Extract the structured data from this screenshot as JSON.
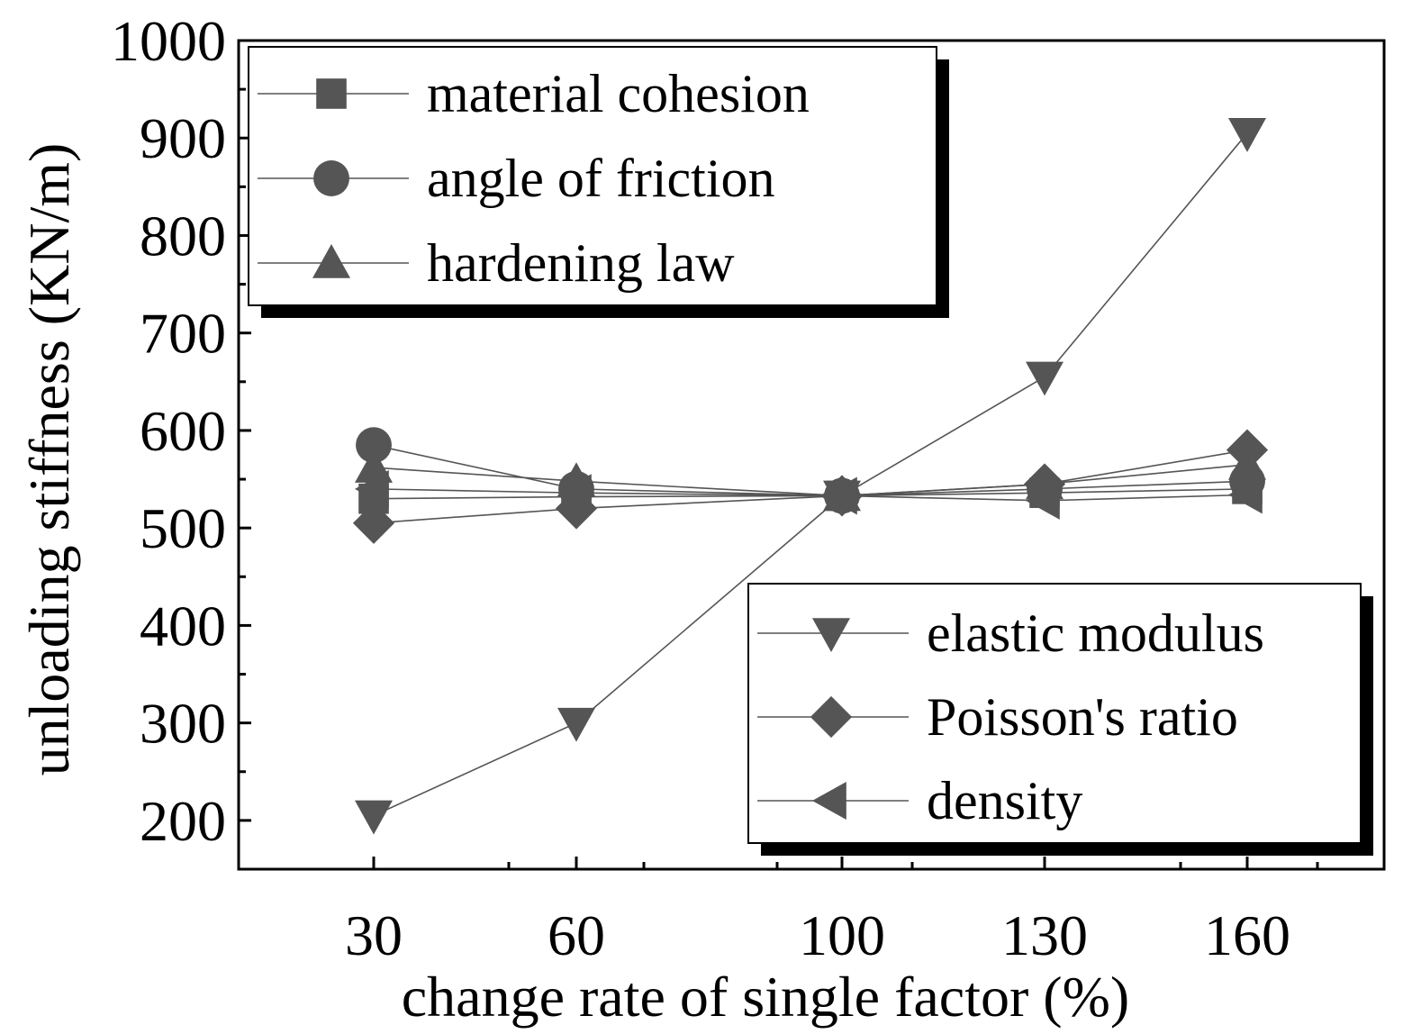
{
  "chart_data": {
    "type": "line",
    "title": "",
    "xlabel": "change rate of single factor (%)",
    "ylabel": "unloading stiffness (KN/m)",
    "categories": [
      "30",
      "60",
      "100",
      "130",
      "160"
    ],
    "x": [
      30,
      60,
      100,
      130,
      160
    ],
    "xlim": [
      10,
      180
    ],
    "ylim": [
      150,
      1000
    ],
    "yticks": [
      200,
      300,
      400,
      500,
      600,
      700,
      800,
      900,
      1000
    ],
    "grid": false,
    "series": [
      {
        "name": "material cohesion",
        "marker": "square",
        "values": [
          530,
          532,
          533,
          536,
          540
        ]
      },
      {
        "name": "angle of friction",
        "marker": "circle",
        "values": [
          585,
          540,
          533,
          540,
          548
        ]
      },
      {
        "name": "hardening law",
        "marker": "triangle-up",
        "values": [
          562,
          548,
          533,
          545,
          565
        ]
      },
      {
        "name": "elastic modulus",
        "marker": "triangle-down",
        "values": [
          205,
          300,
          533,
          655,
          905
        ]
      },
      {
        "name": "Poisson's ratio",
        "marker": "diamond",
        "values": [
          505,
          520,
          533,
          545,
          580
        ]
      },
      {
        "name": "density",
        "marker": "triangle-left",
        "values": [
          540,
          536,
          533,
          528,
          534
        ]
      }
    ],
    "legends": [
      {
        "placement": "top-left",
        "entries": [
          "material cohesion",
          "angle of friction",
          "hardening law"
        ]
      },
      {
        "placement": "bottom-right",
        "entries": [
          "elastic modulus",
          "Poisson's ratio",
          "density"
        ]
      }
    ],
    "colors": {
      "marker": "#555555",
      "line": "#555555",
      "axis": "#000000"
    }
  }
}
